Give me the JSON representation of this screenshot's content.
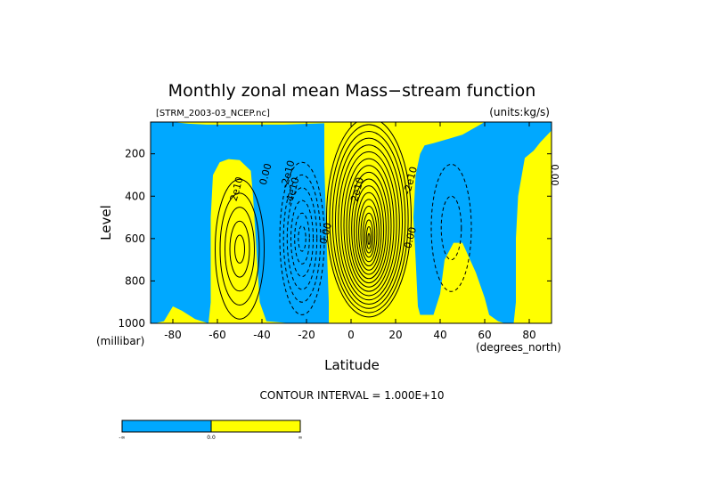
{
  "chart_data": {
    "type": "heatmap",
    "title": "Monthly zonal mean Mass−stream function",
    "file_label": "[STRM_2003-03_NCEP.nc]",
    "units_label": "(units:kg/s)",
    "xlabel": "Latitude",
    "ylabel": "Level",
    "x_unit": "(degrees_north)",
    "y_unit": "(millibar)",
    "xlim": [
      -90,
      90
    ],
    "ylim": [
      1000,
      50
    ],
    "x_ticks": [
      -80,
      -60,
      -40,
      -20,
      0,
      20,
      40,
      60,
      80
    ],
    "y_ticks": [
      200,
      400,
      600,
      800,
      1000
    ],
    "contour_interval_text": "CONTOUR INTERVAL = 1.000E+10",
    "contour_interval": 10000000000,
    "colorbar": {
      "labels": [
        "-∞",
        "0.0",
        "∞"
      ],
      "colors": {
        "negative": "#00a8ff",
        "positive": "#ffff00"
      }
    },
    "contour_labels": [
      {
        "text": "2e10",
        "lat": -50,
        "p": 370
      },
      {
        "text": "0.00",
        "lat": -37,
        "p": 300
      },
      {
        "text": "-2e10",
        "lat": -27,
        "p": 300
      },
      {
        "text": "-4e10",
        "lat": -25,
        "p": 380
      },
      {
        "text": "0.00",
        "lat": -10,
        "p": 580
      },
      {
        "text": "-2e10",
        "lat": 4,
        "p": 380
      },
      {
        "text": "-2e10",
        "lat": 28,
        "p": 330
      },
      {
        "text": "0.00",
        "lat": 28,
        "p": 600
      },
      {
        "text": "0.00",
        "lat": 90,
        "p": 300
      }
    ],
    "cells": [
      {
        "name": "southern-ferrel-cell",
        "sign": "positive",
        "lat_center": -50,
        "p_center": 650,
        "peak": 50000000000
      },
      {
        "name": "southern-hadley-cell",
        "sign": "negative",
        "lat_center": -22,
        "p_center": 600,
        "peak": -60000000000
      },
      {
        "name": "northern-hadley-cell",
        "sign": "positive",
        "lat_center": 8,
        "p_center": 500,
        "peak": 180000000000
      },
      {
        "name": "northern-ferrel-cell",
        "sign": "negative",
        "lat_center": 45,
        "p_center": 550,
        "peak": -20000000000
      }
    ]
  }
}
